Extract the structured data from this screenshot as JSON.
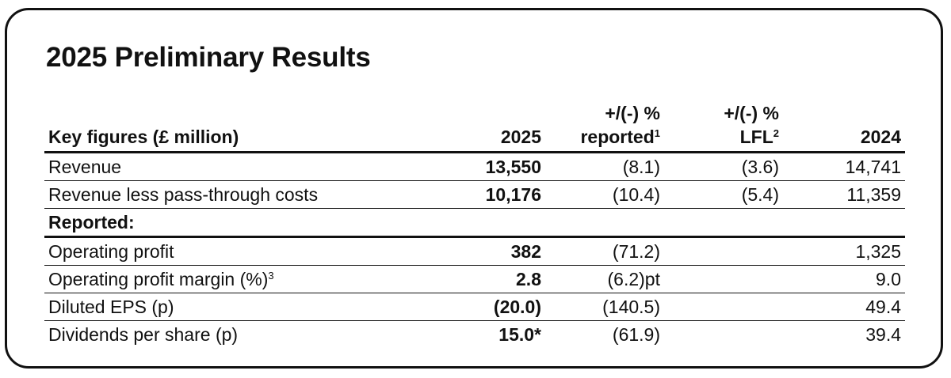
{
  "title": "2025 Preliminary Results",
  "table": {
    "header": {
      "label": "Key figures (£ million)",
      "col_2025": "2025",
      "reported_line1": "+/(-) %",
      "reported_line2": "reported",
      "reported_sup": "1",
      "lfl_line1": "+/(-) %",
      "lfl_line2": "LFL",
      "lfl_sup": "2",
      "col_2024": "2024"
    },
    "rows": [
      {
        "label": "Revenue",
        "sup": "",
        "v2025": "13,550",
        "reported": "(8.1)",
        "lfl": "(3.6)",
        "v2024": "14,741"
      },
      {
        "label": "Revenue less pass-through costs",
        "sup": "",
        "v2025": "10,176",
        "reported": "(10.4)",
        "lfl": "(5.4)",
        "v2024": "11,359"
      },
      {
        "label": "Reported:",
        "sup": "",
        "v2025": "",
        "reported": "",
        "lfl": "",
        "v2024": ""
      },
      {
        "label": "Operating profit",
        "sup": "",
        "v2025": "382",
        "reported": "(71.2)",
        "lfl": "",
        "v2024": "1,325"
      },
      {
        "label": "Operating profit margin (%)",
        "sup": "3",
        "v2025": "2.8",
        "reported": "(6.2)pt",
        "lfl": "",
        "v2024": "9.0"
      },
      {
        "label": "Diluted EPS (p)",
        "sup": "",
        "v2025": "(20.0)",
        "reported": "(140.5)",
        "lfl": "",
        "v2024": "49.4"
      },
      {
        "label": "Dividends per share (p)",
        "sup": "",
        "v2025": "15.0*",
        "reported": "(61.9)",
        "lfl": "",
        "v2024": "39.4"
      }
    ]
  }
}
